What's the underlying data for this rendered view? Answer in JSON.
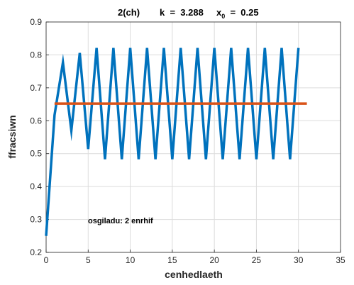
{
  "chart_data": {
    "type": "line",
    "title_parts": {
      "label": "2(ch)",
      "k_label": "k  =  3.288",
      "x0_prefix": "x",
      "x0_sub": "0",
      "x0_suffix": "  =  0.25"
    },
    "xlabel": "cenhedlaeth",
    "ylabel": "ffracsiwn",
    "xlim": [
      0,
      35
    ],
    "ylim": [
      0.2,
      0.9
    ],
    "xticks": [
      0,
      5,
      10,
      15,
      20,
      25,
      30,
      35
    ],
    "yticks": [
      0.2,
      0.3,
      0.4,
      0.5,
      0.6,
      0.7,
      0.8,
      0.9
    ],
    "grid": true,
    "annotation": "osgiladu: 2 enrhif",
    "series": [
      {
        "color": "#0072BD",
        "x": [
          0,
          1,
          2,
          3,
          4,
          5,
          6,
          7,
          8,
          9,
          10,
          11,
          12,
          13,
          14,
          15,
          16,
          17,
          18,
          19,
          20,
          21,
          22,
          23,
          24,
          25,
          26,
          27,
          28,
          29,
          30
        ],
        "values": [
          0.25,
          0.617,
          0.777,
          0.57,
          0.806,
          0.514,
          0.821,
          0.483,
          0.821,
          0.483,
          0.821,
          0.483,
          0.821,
          0.483,
          0.821,
          0.483,
          0.821,
          0.483,
          0.821,
          0.483,
          0.821,
          0.483,
          0.821,
          0.483,
          0.821,
          0.483,
          0.821,
          0.483,
          0.821,
          0.483,
          0.821
        ]
      },
      {
        "color": "#D95319",
        "x": [
          1,
          31
        ],
        "values": [
          0.652,
          0.652
        ]
      }
    ]
  }
}
